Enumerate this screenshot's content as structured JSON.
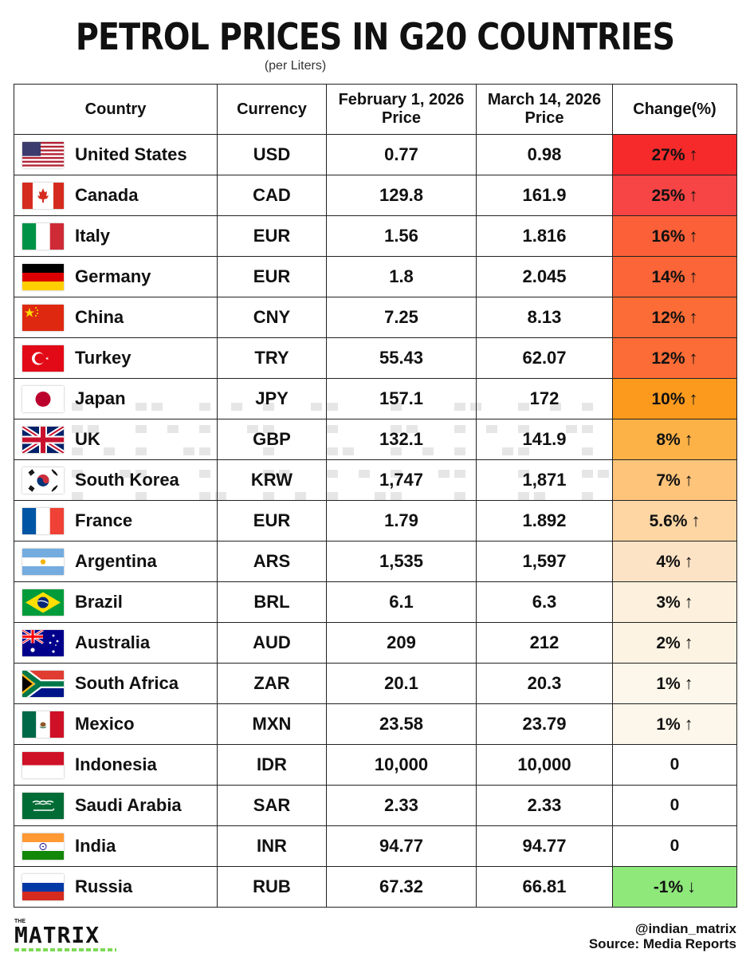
{
  "title": "PETROL PRICES IN G20 COUNTRIES",
  "subtitle": "(per Liters)",
  "columns": [
    "Country",
    "Currency",
    "February 1, 2026\nPrice",
    "March 14, 2026\nPrice",
    "Change(%)"
  ],
  "rows": [
    {
      "country": "United States",
      "flag": "us-flag",
      "currency": "USD",
      "feb": "0.77",
      "mar": "0.98",
      "change": "27%",
      "arrow": "↑",
      "color": "#f62a2a"
    },
    {
      "country": "Canada",
      "flag": "canada-flag",
      "currency": "CAD",
      "feb": "129.8",
      "mar": "161.9",
      "change": "25%",
      "arrow": "↑",
      "color": "#f74444"
    },
    {
      "country": "Italy",
      "flag": "italy-flag",
      "currency": "EUR",
      "feb": "1.56",
      "mar": "1.816",
      "change": "16%",
      "arrow": "↑",
      "color": "#fb6038"
    },
    {
      "country": "Germany",
      "flag": "germany-flag",
      "currency": "EUR",
      "feb": "1.8",
      "mar": "2.045",
      "change": "14%",
      "arrow": "↑",
      "color": "#fb6538"
    },
    {
      "country": "China",
      "flag": "china-flag",
      "currency": "CNY",
      "feb": "7.25",
      "mar": "8.13",
      "change": "12%",
      "arrow": "↑",
      "color": "#fc6c36"
    },
    {
      "country": "Turkey",
      "flag": "turkey-flag",
      "currency": "TRY",
      "feb": "55.43",
      "mar": "62.07",
      "change": "12%",
      "arrow": "↑",
      "color": "#fc6c36"
    },
    {
      "country": "Japan",
      "flag": "japan-flag",
      "currency": "JPY",
      "feb": "157.1",
      "mar": "172",
      "change": "10%",
      "arrow": "↑",
      "color": "#fc9a1e"
    },
    {
      "country": "UK",
      "flag": "uk-flag",
      "currency": "GBP",
      "feb": "132.1",
      "mar": "141.9",
      "change": "8%",
      "arrow": "↑",
      "color": "#fcb247"
    },
    {
      "country": "South Korea",
      "flag": "south-korea-flag",
      "currency": "KRW",
      "feb": "1,747",
      "mar": "1,871",
      "change": "7%",
      "arrow": "↑",
      "color": "#fdc47a"
    },
    {
      "country": "France",
      "flag": "france-flag",
      "currency": "EUR",
      "feb": "1.79",
      "mar": "1.892",
      "change": "5.6%",
      "arrow": "↑",
      "color": "#fdd6a4"
    },
    {
      "country": "Argentina",
      "flag": "argentina-flag",
      "currency": "ARS",
      "feb": "1,535",
      "mar": "1,597",
      "change": "4%",
      "arrow": "↑",
      "color": "#fde3c5"
    },
    {
      "country": "Brazil",
      "flag": "brazil-flag",
      "currency": "BRL",
      "feb": "6.1",
      "mar": "6.3",
      "change": "3%",
      "arrow": "↑",
      "color": "#fdf1dd"
    },
    {
      "country": "Australia",
      "flag": "australia-flag",
      "currency": "AUD",
      "feb": "209",
      "mar": "212",
      "change": "2%",
      "arrow": "↑",
      "color": "#fdf3e2"
    },
    {
      "country": "South Africa",
      "flag": "south-africa-flag",
      "currency": "ZAR",
      "feb": "20.1",
      "mar": "20.3",
      "change": "1%",
      "arrow": "↑",
      "color": "#fdf6ea"
    },
    {
      "country": "Mexico",
      "flag": "mexico-flag",
      "currency": "MXN",
      "feb": "23.58",
      "mar": "23.79",
      "change": "1%",
      "arrow": "↑",
      "color": "#fdf6ea"
    },
    {
      "country": "Indonesia",
      "flag": "indonesia-flag",
      "currency": "IDR",
      "feb": "10,000",
      "mar": "10,000",
      "change": "0",
      "arrow": "",
      "color": "#ffffff"
    },
    {
      "country": "Saudi Arabia",
      "flag": "saudi-arabia-flag",
      "currency": "SAR",
      "feb": "2.33",
      "mar": "2.33",
      "change": "0",
      "arrow": "",
      "color": "#ffffff"
    },
    {
      "country": "India",
      "flag": "india-flag",
      "currency": "INR",
      "feb": "94.77",
      "mar": "94.77",
      "change": "0",
      "arrow": "",
      "color": "#ffffff"
    },
    {
      "country": "Russia",
      "flag": "russia-flag",
      "currency": "RUB",
      "feb": "67.32",
      "mar": "66.81",
      "change": "-1%",
      "arrow": "↓",
      "color": "#8ee87a"
    }
  ],
  "footer": {
    "logo": "MATRIX",
    "logo_small": "THE",
    "handle": "@indian_matrix",
    "source": "Source: Media Reports"
  }
}
